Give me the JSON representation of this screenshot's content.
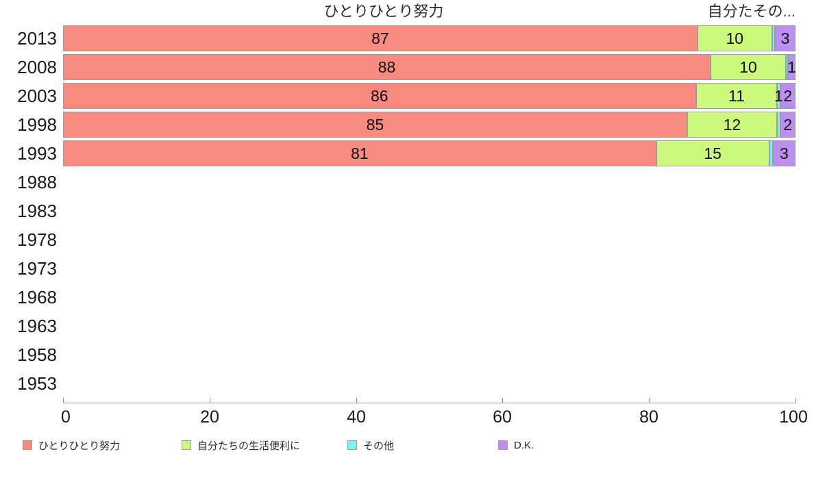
{
  "chart_data": {
    "type": "bar",
    "orientation": "horizontal",
    "stacked": true,
    "title": "",
    "column_header_left": "ひとりひとり努力",
    "column_header_right": "自分たその...",
    "categories": [
      "2013",
      "2008",
      "2003",
      "1998",
      "1993",
      "1988",
      "1983",
      "1978",
      "1973",
      "1968",
      "1963",
      "1958",
      "1953"
    ],
    "xlim": [
      0,
      100
    ],
    "x_ticks": [
      "0",
      "20",
      "40",
      "60",
      "80",
      "100"
    ],
    "grid": false,
    "legend_position": "bottom",
    "years_with_data": [
      "2013",
      "2008",
      "2003",
      "1998",
      "1993"
    ],
    "series": [
      {
        "name": "ひとりひとり努力",
        "color": "#F98A80",
        "values": [
          87,
          88,
          86,
          85,
          81
        ]
      },
      {
        "name": "自分たちの生活便利に",
        "color": "#CDF87E",
        "values": [
          10,
          10,
          11,
          12,
          15
        ]
      },
      {
        "name": "その他",
        "color": "#7EF2F2",
        "values": [
          0,
          1,
          1,
          1,
          1
        ]
      },
      {
        "name": "D.K.",
        "color": "#BC8EF0",
        "values": [
          3,
          1,
          2,
          2,
          3
        ]
      }
    ],
    "bars": [
      {
        "year": "2013",
        "segments": [
          {
            "series": 0,
            "label": "87",
            "width_pct": 86.6
          },
          {
            "series": 1,
            "label": "10",
            "width_pct": 10.2
          },
          {
            "series": 2,
            "label": "",
            "width_pct": 0.4
          },
          {
            "series": 3,
            "label": "3",
            "width_pct": 2.8
          }
        ]
      },
      {
        "year": "2008",
        "segments": [
          {
            "series": 0,
            "label": "88",
            "width_pct": 88.4
          },
          {
            "series": 1,
            "label": "10",
            "width_pct": 10.3
          },
          {
            "series": 2,
            "label": "",
            "width_pct": 0.3
          },
          {
            "series": 3,
            "label": "1",
            "width_pct": 1.0
          }
        ]
      },
      {
        "year": "2003",
        "segments": [
          {
            "series": 0,
            "label": "86",
            "width_pct": 86.4
          },
          {
            "series": 1,
            "label": "11",
            "width_pct": 11.1
          },
          {
            "series": 2,
            "label": "1",
            "width_pct": 0.4
          },
          {
            "series": 3,
            "label": "2",
            "width_pct": 2.1
          }
        ]
      },
      {
        "year": "1998",
        "segments": [
          {
            "series": 0,
            "label": "85",
            "width_pct": 85.2
          },
          {
            "series": 1,
            "label": "12",
            "width_pct": 12.3
          },
          {
            "series": 2,
            "label": "",
            "width_pct": 0.4
          },
          {
            "series": 3,
            "label": "2",
            "width_pct": 2.1
          }
        ]
      },
      {
        "year": "1993",
        "segments": [
          {
            "series": 0,
            "label": "81",
            "width_pct": 81.0
          },
          {
            "series": 1,
            "label": "15",
            "width_pct": 15.4
          },
          {
            "series": 2,
            "label": "",
            "width_pct": 0.5
          },
          {
            "series": 3,
            "label": "3",
            "width_pct": 3.1
          }
        ]
      }
    ]
  }
}
